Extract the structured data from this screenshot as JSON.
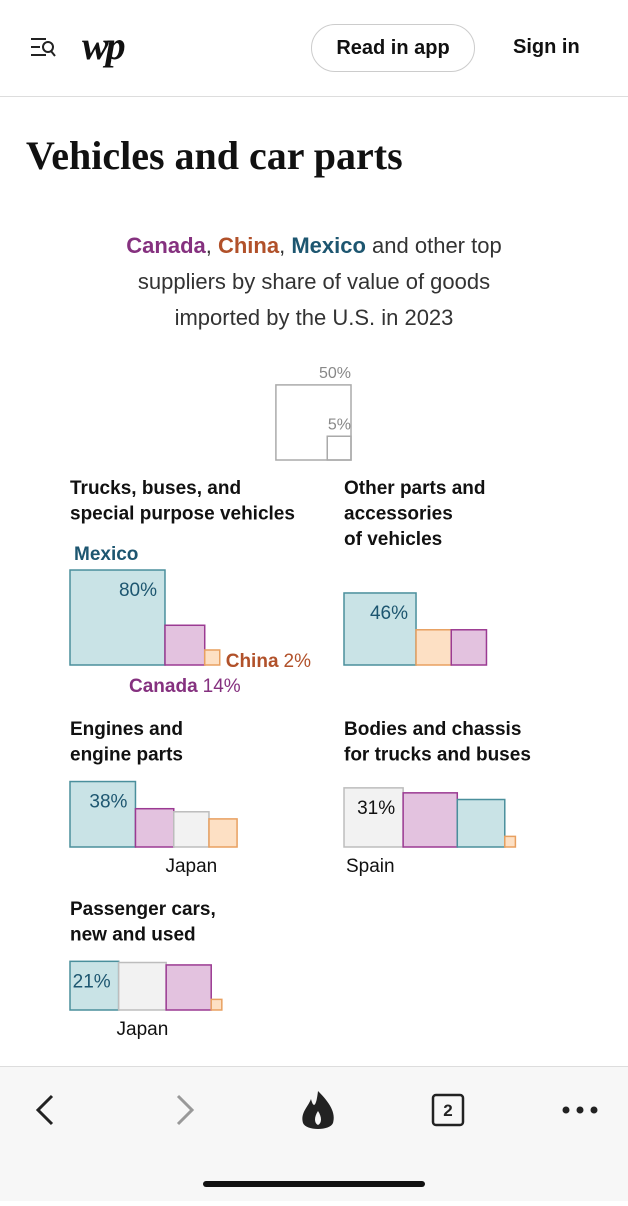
{
  "header": {
    "logo": "wp",
    "read_button": "Read in app",
    "sign_in": "Sign in"
  },
  "article_title": "Vehicles and car parts",
  "chart_data": {
    "type": "square",
    "subtitle": [
      {
        "text": "Canada",
        "color": "#85317f"
      },
      {
        "text": ", "
      },
      {
        "text": "China",
        "color": "#b1512a"
      },
      {
        "text": ", "
      },
      {
        "text": "Mexico",
        "color": "#1d5670"
      },
      {
        "text": " and other top suppliers by share of value of goods imported by the U.S. in 2023"
      }
    ],
    "legend": {
      "values": [
        50,
        5
      ],
      "value_labels": [
        "50%",
        "5%"
      ]
    },
    "fills": {
      "Mexico": "#c9e3e6",
      "Canada": "#e3c2df",
      "China": "#fde0c4",
      "Japan": "#f2f2f2",
      "Spain": "#f2f2f2"
    },
    "strokes": {
      "Mexico": "#4a8f9c",
      "Canada": "#9b3a92",
      "China": "#e8a060",
      "Japan": "#bdbdbd",
      "Spain": "#bdbdbd"
    },
    "text_colors": {
      "Mexico": "#1d5670",
      "Canada": "#85317f",
      "China": "#b1512a",
      "Japan": "#111111",
      "Spain": "#111111"
    },
    "panels": [
      {
        "title": [
          "Trucks, buses, and",
          "special purpose vehicles"
        ],
        "bars": [
          {
            "supplier": "Mexico",
            "value": 80,
            "value_label": "80%",
            "labeled": true
          },
          {
            "supplier": "Canada",
            "value": 14,
            "value_label": "14%",
            "labeled": true
          },
          {
            "supplier": "China",
            "value": 2,
            "value_label": "2%",
            "labeled": true
          }
        ]
      },
      {
        "title": [
          "Other parts and",
          "accessories",
          "of vehicles"
        ],
        "bars": [
          {
            "supplier": "Mexico",
            "value": 46,
            "value_label": "46%"
          },
          {
            "supplier": "China",
            "value": 11
          },
          {
            "supplier": "Canada",
            "value": 11
          }
        ]
      },
      {
        "title": [
          "Engines and",
          "engine parts"
        ],
        "bars": [
          {
            "supplier": "Mexico",
            "value": 38,
            "value_label": "38%"
          },
          {
            "supplier": "Canada",
            "value": 13
          },
          {
            "supplier": "Japan",
            "value": 11,
            "labeled": true
          },
          {
            "supplier": "China",
            "value": 7
          }
        ]
      },
      {
        "title": [
          "Bodies and chassis",
          "for trucks and buses"
        ],
        "bars": [
          {
            "supplier": "Spain",
            "value": 31,
            "value_label": "31%",
            "labeled": true
          },
          {
            "supplier": "Canada",
            "value": 26
          },
          {
            "supplier": "Mexico",
            "value": 20
          },
          {
            "supplier": "China",
            "value": 1
          }
        ]
      },
      {
        "title": [
          "Passenger cars,",
          "new and used"
        ],
        "bars": [
          {
            "supplier": "Mexico",
            "value": 21,
            "value_label": "21%"
          },
          {
            "supplier": "Japan",
            "value": 20,
            "labeled": true
          },
          {
            "supplier": "Canada",
            "value": 18
          },
          {
            "supplier": "China",
            "value": 1
          }
        ]
      }
    ]
  },
  "nav": {
    "tabs": "2"
  }
}
